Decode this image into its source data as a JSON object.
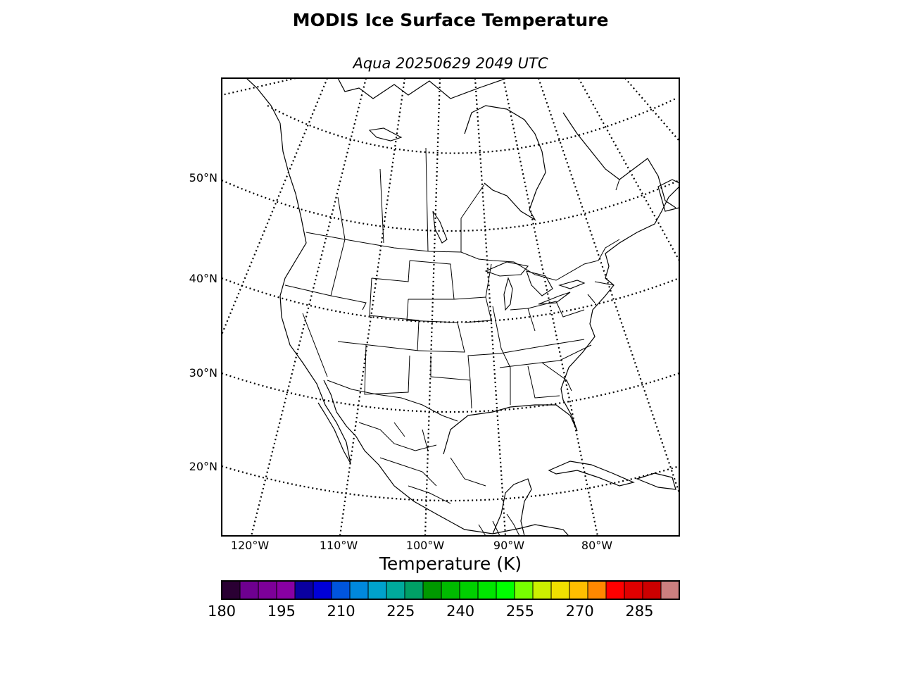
{
  "title": "MODIS Ice Surface Temperature",
  "subtitle": "Aqua 20250629 2049 UTC",
  "map": {
    "projection": "lambert-conformal",
    "lat_labels": [
      "50°N",
      "40°N",
      "30°N",
      "20°N"
    ],
    "lon_labels": [
      "120°W",
      "110°W",
      "100°W",
      "90°W",
      "80°W"
    ],
    "coastline_color": "#000000",
    "graticule_style": "dotted"
  },
  "colorbar": {
    "label": "Temperature (K)",
    "min": 180,
    "max": 295,
    "tick_labels": [
      "180",
      "195",
      "210",
      "225",
      "240",
      "255",
      "270",
      "285"
    ],
    "tick_values": [
      180,
      195,
      210,
      225,
      240,
      255,
      270,
      285
    ],
    "colors": [
      "#2a0033",
      "#6e0090",
      "#7d0099",
      "#8800a3",
      "#0a00a0",
      "#0000d8",
      "#0055dd",
      "#0088dd",
      "#00a2cc",
      "#00aa9c",
      "#00a066",
      "#009900",
      "#00bb00",
      "#00d000",
      "#00e600",
      "#00ff00",
      "#77ff00",
      "#ccf000",
      "#f0e000",
      "#ffbe00",
      "#ff8800",
      "#ff0000",
      "#e00000",
      "#cc0000",
      "#cc7f7f"
    ]
  }
}
